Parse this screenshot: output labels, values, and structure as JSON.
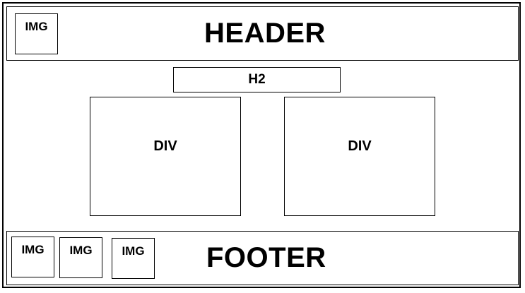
{
  "header": {
    "title": "HEADER",
    "image_label": "IMG"
  },
  "main": {
    "heading_label": "H2",
    "divs": [
      {
        "label": "DIV"
      },
      {
        "label": "DIV"
      }
    ]
  },
  "footer": {
    "title": "FOOTER",
    "images": [
      {
        "label": "IMG"
      },
      {
        "label": "IMG"
      },
      {
        "label": "IMG"
      }
    ]
  }
}
